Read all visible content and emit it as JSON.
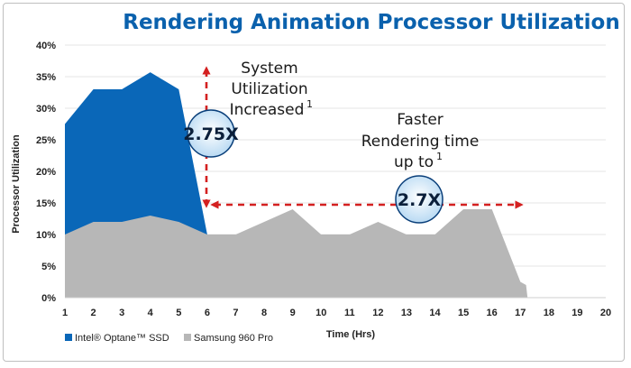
{
  "chart_data": {
    "type": "area",
    "title": "Rendering Animation Processor Utilization",
    "xlabel": "Time (Hrs)",
    "ylabel": "Processor Utilization",
    "xlim": [
      1,
      20
    ],
    "ylim": [
      0,
      40
    ],
    "x_ticks": [
      "1",
      "2",
      "3",
      "4",
      "5",
      "6",
      "7",
      "8",
      "9",
      "10",
      "11",
      "12",
      "13",
      "14",
      "15",
      "16",
      "17",
      "18",
      "19",
      "20"
    ],
    "y_ticks": [
      "0%",
      "5%",
      "10%",
      "15%",
      "20%",
      "25%",
      "30%",
      "35%",
      "40%"
    ],
    "grid": "horizontal",
    "legend_position": "bottom-left",
    "series": [
      {
        "name": "Intel® Optane™ SSD",
        "color": "#0a67b8",
        "points": [
          [
            1,
            27.5
          ],
          [
            2,
            33
          ],
          [
            3,
            33
          ],
          [
            4,
            35.7
          ],
          [
            5,
            33
          ],
          [
            6,
            10
          ]
        ]
      },
      {
        "name": "Samsung 960 Pro",
        "color": "#b7b7b7",
        "points": [
          [
            1,
            10
          ],
          [
            2,
            12
          ],
          [
            3,
            12
          ],
          [
            4,
            13
          ],
          [
            5,
            12
          ],
          [
            6,
            10
          ],
          [
            7,
            10
          ],
          [
            8,
            12
          ],
          [
            9,
            14
          ],
          [
            10,
            10
          ],
          [
            11,
            10
          ],
          [
            12,
            12
          ],
          [
            13,
            10
          ],
          [
            14,
            10
          ],
          [
            15,
            14
          ],
          [
            16,
            14
          ],
          [
            17,
            2.5
          ],
          [
            17.2,
            2
          ],
          [
            17.25,
            0
          ]
        ]
      }
    ],
    "annotations": {
      "utilization_line1": "System",
      "utilization_line2": "Utilization",
      "utilization_line3": "Increased",
      "utilization_sup": "1",
      "utilization_badge": "2.75X",
      "speed_line1": "Faster",
      "speed_line2": "Rendering time",
      "speed_line3": "up to",
      "speed_sup": "1",
      "speed_badge": "2.7X"
    }
  }
}
